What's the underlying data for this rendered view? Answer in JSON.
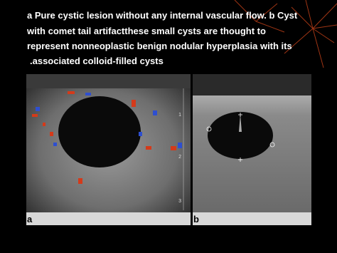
{
  "slide": {
    "caption_lines": [
      "a Pure cystic lesion without any internal vascular flow. b Cyst",
      "with comet tail artifactthese small cysts are thought to",
      "represent nonneoplastic benign nodular hyperplasia with its",
      ".associated colloid-filled cysts"
    ],
    "panels": [
      {
        "label": "a",
        "scale": [
          "1",
          "2",
          "3"
        ]
      },
      {
        "label": "b"
      }
    ]
  }
}
